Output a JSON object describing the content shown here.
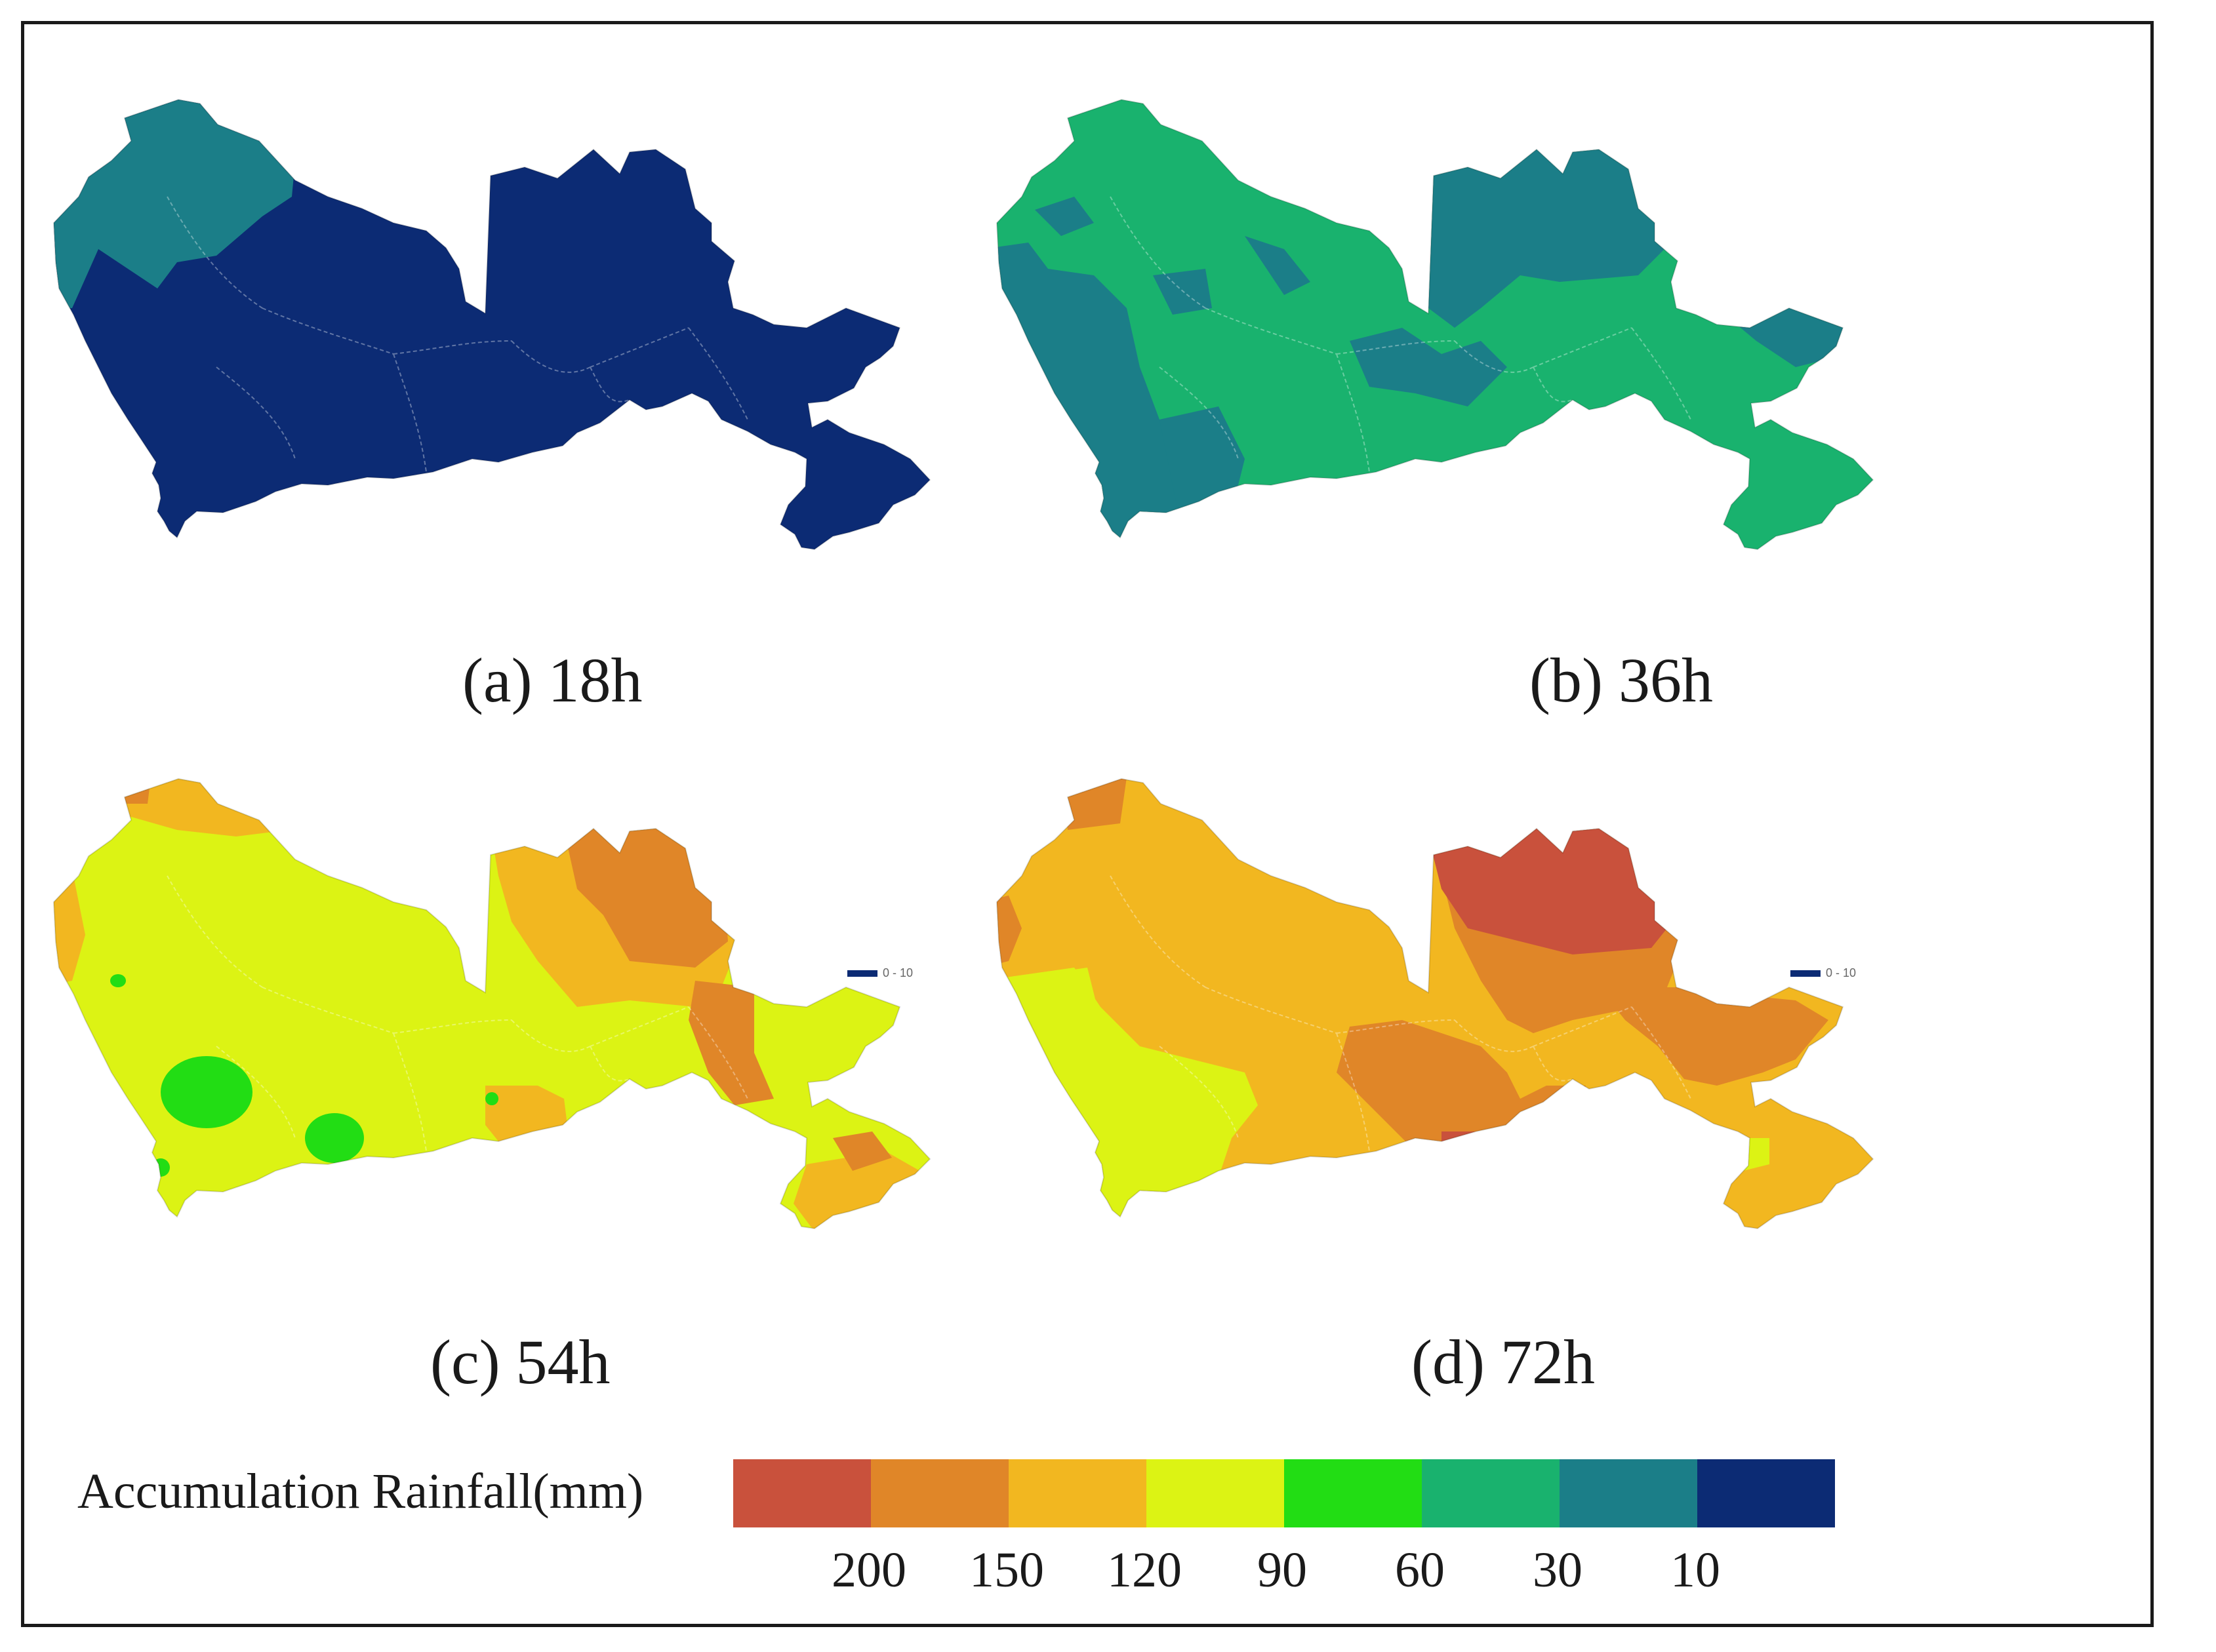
{
  "panels": [
    {
      "id": "a",
      "caption": "(a) 18h"
    },
    {
      "id": "b",
      "caption": "(b) 36h"
    },
    {
      "id": "c",
      "caption": "(c) 54h"
    },
    {
      "id": "d",
      "caption": "(d) 72h"
    }
  ],
  "legend": {
    "title": "Accumulation Rainfall(mm)",
    "classes": [
      {
        "color": "#c9513c"
      },
      {
        "color": "#e08628"
      },
      {
        "color": "#f2b720"
      },
      {
        "color": "#dcf314"
      },
      {
        "color": "#22dd14"
      },
      {
        "color": "#19b26e"
      },
      {
        "color": "#1b7e88"
      },
      {
        "color": "#0c2b74"
      }
    ],
    "ticks": [
      "200",
      "150",
      "120",
      "90",
      "60",
      "30",
      "10"
    ]
  },
  "inset_legend_text": "0 - 10"
}
